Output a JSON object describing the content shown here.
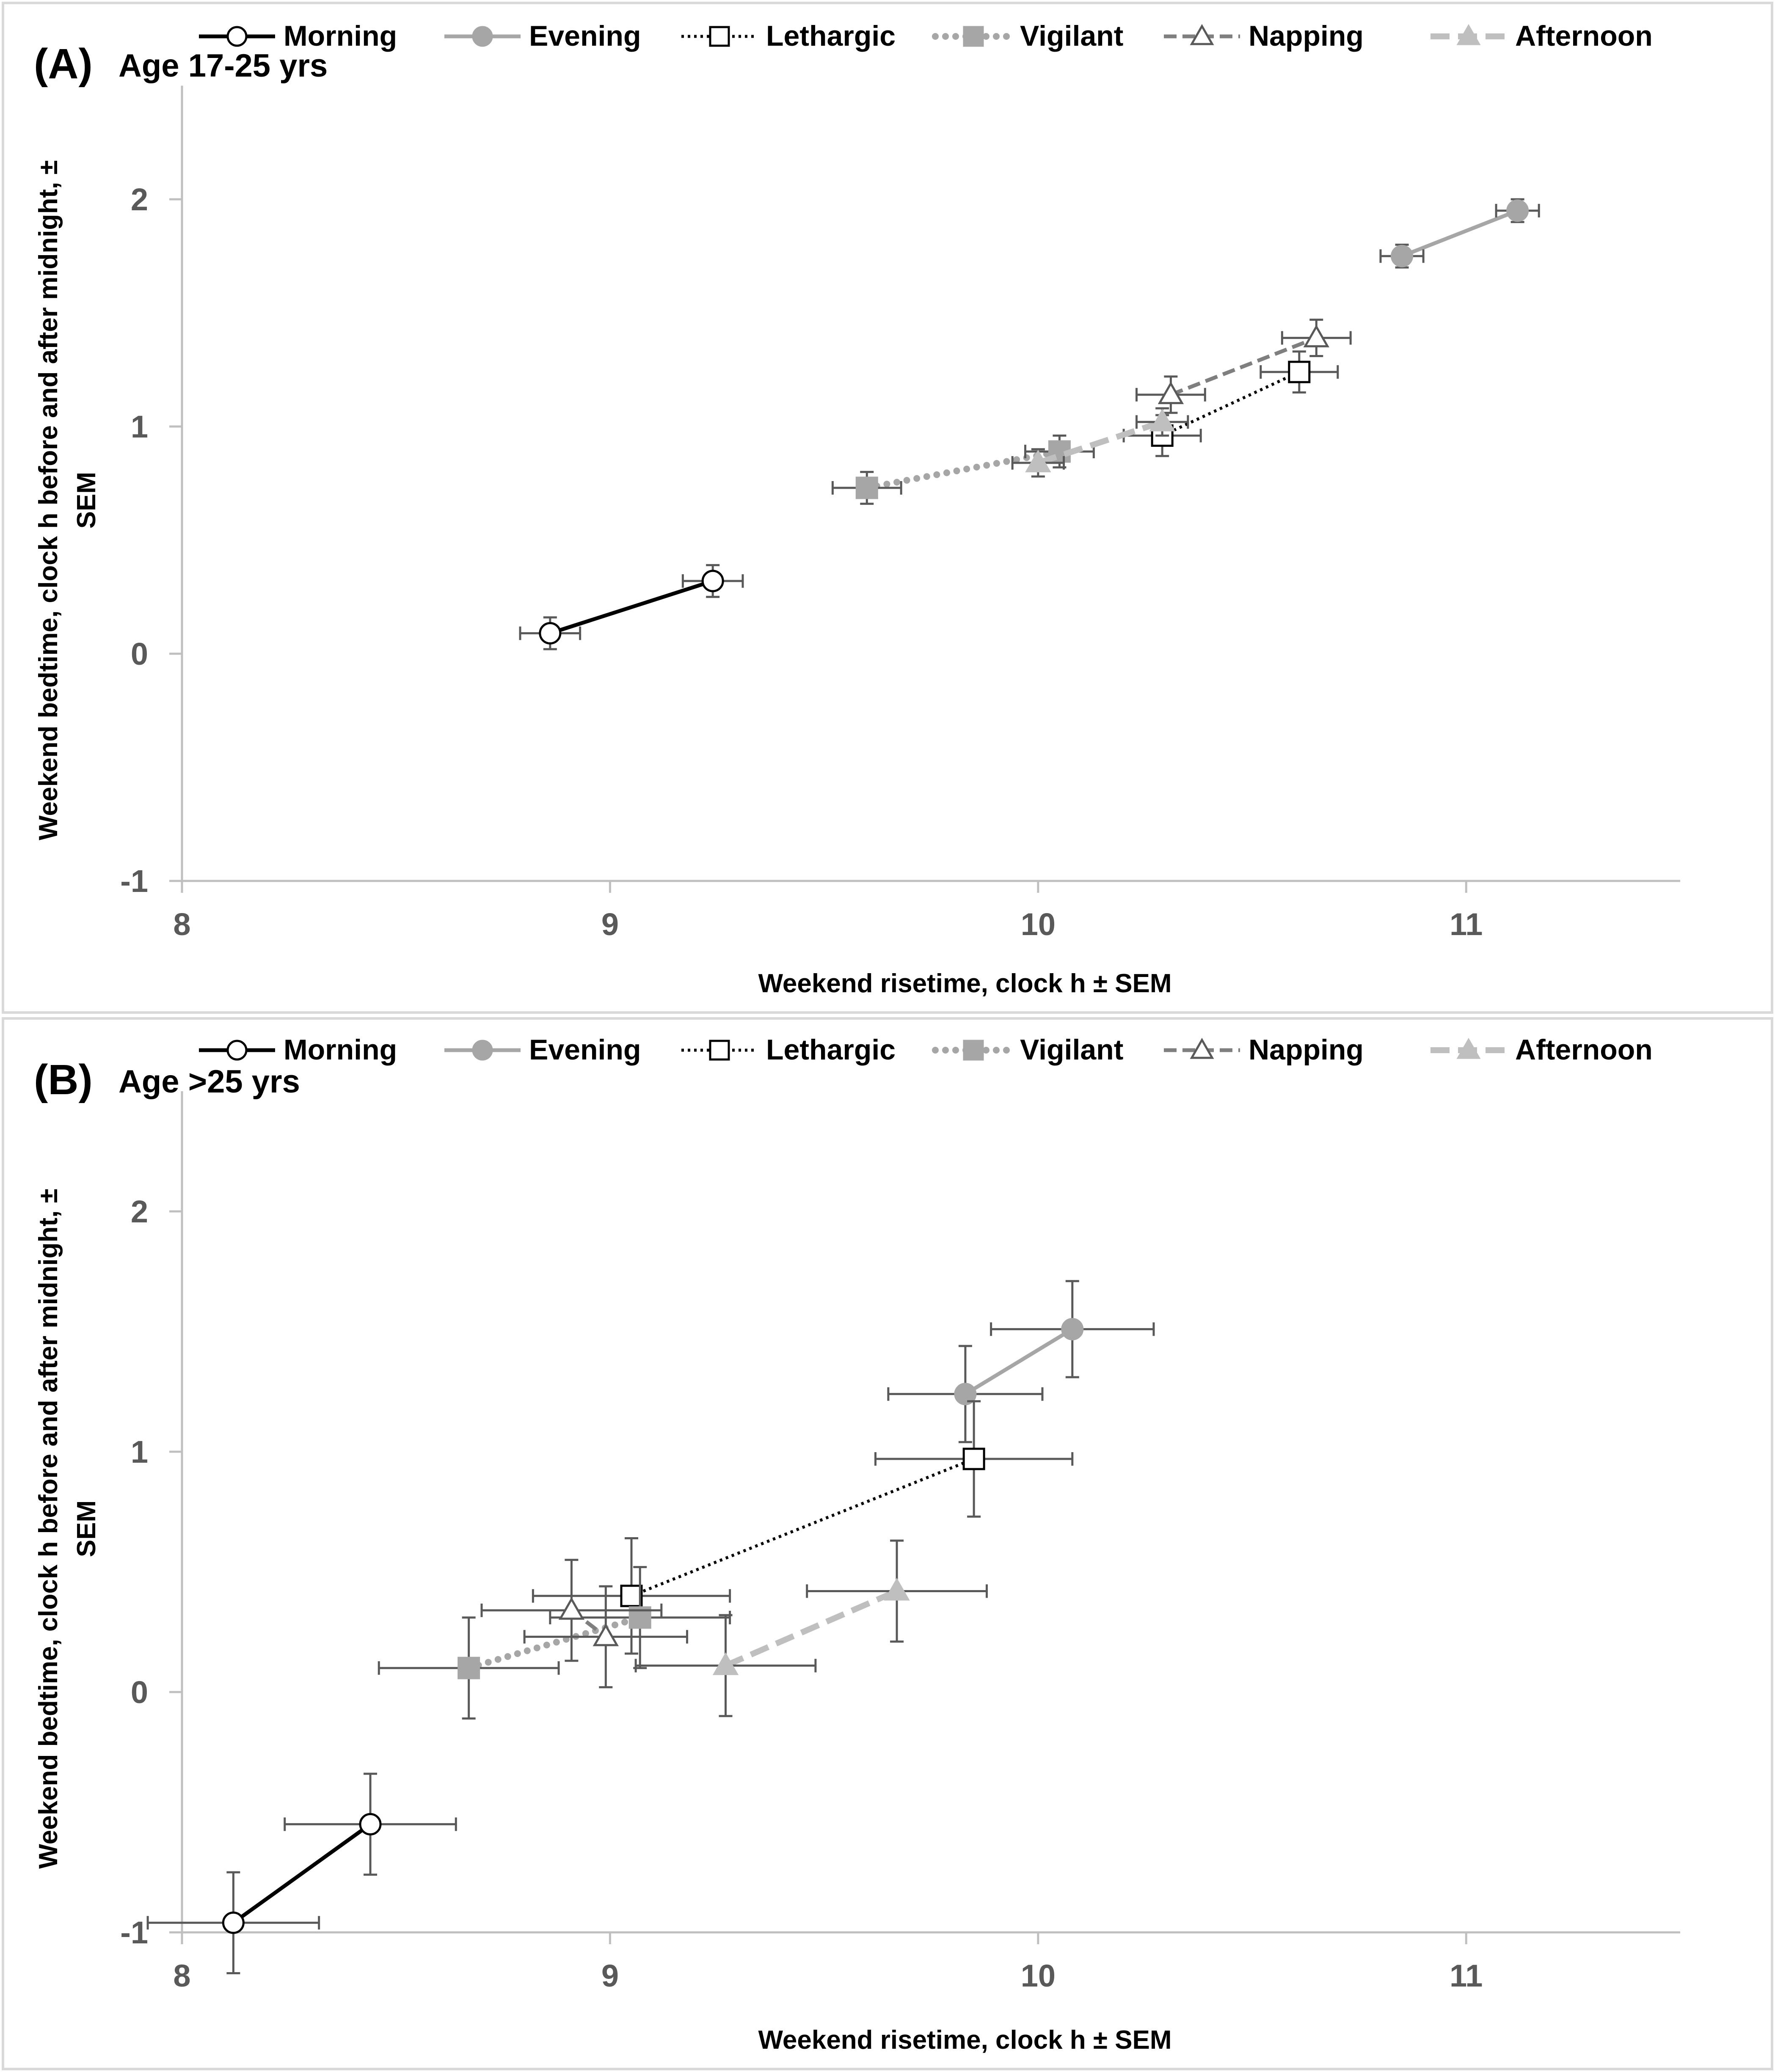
{
  "chart_data": [
    {
      "type": "scatter",
      "panel_label": "(A)",
      "subtitle": "Age 17-25 yrs",
      "xlabel": "Weekend risetime, clock h ± SEM",
      "ylabel_line1": "Weekend bedtime, clock h before and after midnight, ±",
      "ylabel_line2": "SEM",
      "xlim": [
        8,
        11.5
      ],
      "ylim": [
        -1,
        2.5
      ],
      "xticks": [
        "8",
        "9",
        "10",
        "11"
      ],
      "yticks": [
        "-1",
        "0",
        "1",
        "2"
      ],
      "legend_position": "top",
      "series": [
        {
          "name": "Morning",
          "points": [
            {
              "x": 8.86,
              "y": 0.09,
              "xerr": 0.07,
              "yerr": 0.07
            },
            {
              "x": 9.24,
              "y": 0.32,
              "xerr": 0.07,
              "yerr": 0.07
            }
          ]
        },
        {
          "name": "Evening",
          "points": [
            {
              "x": 10.85,
              "y": 1.75,
              "xerr": 0.05,
              "yerr": 0.05
            },
            {
              "x": 11.12,
              "y": 1.95,
              "xerr": 0.05,
              "yerr": 0.05
            }
          ]
        },
        {
          "name": "Lethargic",
          "points": [
            {
              "x": 10.29,
              "y": 0.96,
              "xerr": 0.09,
              "yerr": 0.09
            },
            {
              "x": 10.61,
              "y": 1.24,
              "xerr": 0.09,
              "yerr": 0.09
            }
          ]
        },
        {
          "name": "Vigilant",
          "points": [
            {
              "x": 9.6,
              "y": 0.73,
              "xerr": 0.08,
              "yerr": 0.07
            },
            {
              "x": 10.05,
              "y": 0.89,
              "xerr": 0.08,
              "yerr": 0.07
            }
          ]
        },
        {
          "name": "Napping",
          "points": [
            {
              "x": 10.31,
              "y": 1.14,
              "xerr": 0.08,
              "yerr": 0.08
            },
            {
              "x": 10.65,
              "y": 1.39,
              "xerr": 0.08,
              "yerr": 0.08
            }
          ]
        },
        {
          "name": "Afternoon",
          "points": [
            {
              "x": 10.0,
              "y": 0.84,
              "xerr": 0.06,
              "yerr": 0.06
            },
            {
              "x": 10.29,
              "y": 1.02,
              "xerr": 0.06,
              "yerr": 0.06
            }
          ]
        }
      ]
    },
    {
      "type": "scatter",
      "panel_label": "(B)",
      "subtitle": "Age >25 yrs",
      "xlabel": "Weekend risetime, clock h ± SEM",
      "ylabel_line1": "Weekend bedtime, clock h before and after midnight, ±",
      "ylabel_line2": "SEM",
      "xlim": [
        8,
        11.5
      ],
      "ylim": [
        -1,
        2.5
      ],
      "xticks": [
        "8",
        "9",
        "10",
        "11"
      ],
      "yticks": [
        "-1",
        "0",
        "1",
        "2"
      ],
      "legend_position": "top",
      "series": [
        {
          "name": "Morning",
          "points": [
            {
              "x": 8.12,
              "y": -0.96,
              "xerr": 0.2,
              "yerr": 0.21
            },
            {
              "x": 8.44,
              "y": -0.55,
              "xerr": 0.2,
              "yerr": 0.21
            }
          ]
        },
        {
          "name": "Evening",
          "points": [
            {
              "x": 9.83,
              "y": 1.24,
              "xerr": 0.18,
              "yerr": 0.2
            },
            {
              "x": 10.08,
              "y": 1.51,
              "xerr": 0.19,
              "yerr": 0.2
            }
          ]
        },
        {
          "name": "Lethargic",
          "points": [
            {
              "x": 9.05,
              "y": 0.4,
              "xerr": 0.23,
              "yerr": 0.24
            },
            {
              "x": 9.85,
              "y": 0.97,
              "xerr": 0.23,
              "yerr": 0.24
            }
          ]
        },
        {
          "name": "Vigilant",
          "points": [
            {
              "x": 8.67,
              "y": 0.1,
              "xerr": 0.21,
              "yerr": 0.21
            },
            {
              "x": 9.07,
              "y": 0.31,
              "xerr": 0.21,
              "yerr": 0.21
            }
          ]
        },
        {
          "name": "Napping",
          "points": [
            {
              "x": 8.91,
              "y": 0.34,
              "xerr": 0.21,
              "yerr": 0.21
            },
            {
              "x": 8.99,
              "y": 0.23,
              "xerr": 0.19,
              "yerr": 0.21
            }
          ]
        },
        {
          "name": "Afternoon",
          "points": [
            {
              "x": 9.27,
              "y": 0.11,
              "xerr": 0.21,
              "yerr": 0.21
            },
            {
              "x": 9.67,
              "y": 0.42,
              "xerr": 0.21,
              "yerr": 0.21
            }
          ]
        }
      ]
    }
  ],
  "series_styles": {
    "Morning": {
      "line": "#000000",
      "dash": "solid",
      "marker": "circle",
      "fill": "#ffffff",
      "stroke": "#000000"
    },
    "Evening": {
      "line": "#a6a6a6",
      "dash": "solid",
      "marker": "circle",
      "fill": "#a6a6a6",
      "stroke": "#a6a6a6"
    },
    "Lethargic": {
      "line": "#000000",
      "dash": "dot",
      "marker": "square",
      "fill": "#ffffff",
      "stroke": "#000000"
    },
    "Vigilant": {
      "line": "#a6a6a6",
      "dash": "round-dot",
      "marker": "square",
      "fill": "#a6a6a6",
      "stroke": "#a6a6a6"
    },
    "Napping": {
      "line": "#7f7f7f",
      "dash": "dash",
      "marker": "triangle",
      "fill": "#ffffff",
      "stroke": "#595959"
    },
    "Afternoon": {
      "line": "#bfbfbf",
      "dash": "long-dash",
      "marker": "triangle",
      "fill": "#bfbfbf",
      "stroke": "#bfbfbf"
    }
  },
  "colors": {
    "axis": "#bfbfbf",
    "errorbar": "#595959",
    "tick_text": "#595959"
  }
}
